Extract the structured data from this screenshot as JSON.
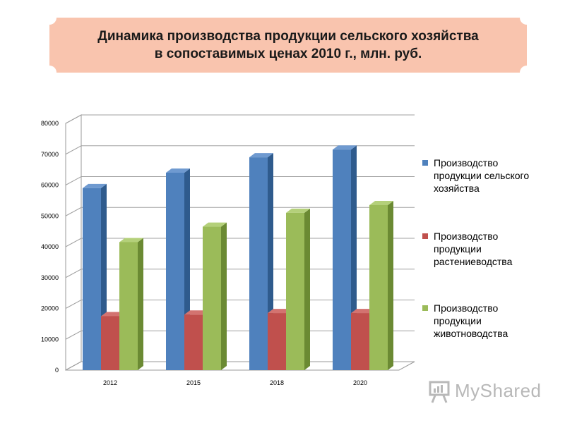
{
  "title": {
    "line1": "Динамика производства продукции сельского хозяйства",
    "line2": "в сопоставимых ценах 2010 г., млн. руб."
  },
  "colors": {
    "banner": "#f9c4ae",
    "series": [
      "#4f81bd",
      "#c0504d",
      "#9bbb59"
    ],
    "series_side": [
      "#2f5b8d",
      "#8c2f2c",
      "#6b8a33"
    ],
    "series_top": [
      "#6f9ad0",
      "#d37370",
      "#b4d07a"
    ]
  },
  "chart_data": {
    "type": "bar",
    "categories": [
      "2012",
      "2015",
      "2018",
      "2020"
    ],
    "series": [
      {
        "name": "Производство продукции сельского хозяйства",
        "values": [
          59000,
          64000,
          69000,
          71500
        ]
      },
      {
        "name": "Производство продукции растениеводства",
        "values": [
          17500,
          18000,
          18500,
          18500
        ]
      },
      {
        "name": "Производство продукции животноводства",
        "values": [
          41500,
          46500,
          51000,
          53500
        ]
      }
    ],
    "yticks": [
      "0",
      "10000",
      "20000",
      "30000",
      "40000",
      "50000",
      "60000",
      "70000",
      "80000"
    ],
    "ylim": [
      0,
      80000
    ],
    "grid": true,
    "legend": "right"
  },
  "legend": {
    "items": [
      {
        "lines": [
          "Производство",
          "продукции сельского",
          "хозяйства"
        ]
      },
      {
        "lines": [
          "Производство",
          "продукции",
          "растениеводства"
        ]
      },
      {
        "lines": [
          "Производство",
          "продукции",
          "животноводства"
        ]
      }
    ]
  },
  "watermark": {
    "text": "MyShared",
    "icon": "presentation-board-icon"
  }
}
